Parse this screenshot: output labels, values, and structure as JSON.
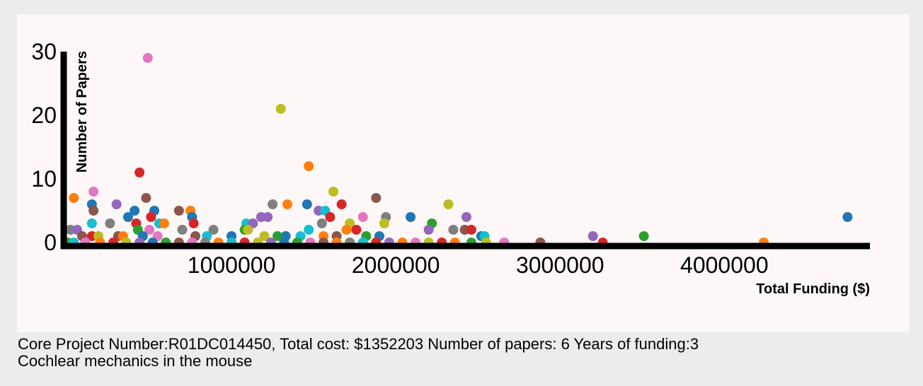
{
  "chart_data": {
    "type": "scatter",
    "xlabel": "Total Funding ($)",
    "ylabel": "Number of Papers",
    "xlim": [
      0,
      4800000
    ],
    "ylim": [
      0,
      30
    ],
    "x_ticks": [
      "1000000",
      "2000000",
      "3000000",
      "4000000"
    ],
    "y_ticks": [
      "0",
      "10",
      "20",
      "30"
    ],
    "palette": [
      "#1f77b4",
      "#ff7f0e",
      "#2ca02c",
      "#d62728",
      "#9467bd",
      "#8c564b",
      "#e377c2",
      "#7f7f7f",
      "#bcbd22",
      "#17becf"
    ],
    "points": [
      {
        "x": 490000,
        "y": 29,
        "c": 6
      },
      {
        "x": 1300000,
        "y": 21,
        "c": 8
      },
      {
        "x": 1470000,
        "y": 12,
        "c": 1
      },
      {
        "x": 440000,
        "y": 11,
        "c": 3
      },
      {
        "x": 160000,
        "y": 8,
        "c": 6
      },
      {
        "x": 1620000,
        "y": 8,
        "c": 8
      },
      {
        "x": 40000,
        "y": 7,
        "c": 1
      },
      {
        "x": 480000,
        "y": 7,
        "c": 5
      },
      {
        "x": 1880000,
        "y": 7,
        "c": 5
      },
      {
        "x": 150000,
        "y": 6,
        "c": 0
      },
      {
        "x": 300000,
        "y": 6,
        "c": 4
      },
      {
        "x": 1250000,
        "y": 6,
        "c": 7
      },
      {
        "x": 1340000,
        "y": 6,
        "c": 1
      },
      {
        "x": 1460000,
        "y": 6,
        "c": 0
      },
      {
        "x": 1670000,
        "y": 6,
        "c": 3
      },
      {
        "x": 2320000,
        "y": 6,
        "c": 8
      },
      {
        "x": 160000,
        "y": 5,
        "c": 5
      },
      {
        "x": 410000,
        "y": 5,
        "c": 0
      },
      {
        "x": 530000,
        "y": 5,
        "c": 0
      },
      {
        "x": 680000,
        "y": 5,
        "c": 5
      },
      {
        "x": 750000,
        "y": 5,
        "c": 1
      },
      {
        "x": 1530000,
        "y": 5,
        "c": 4
      },
      {
        "x": 1570000,
        "y": 5,
        "c": 9
      },
      {
        "x": 370000,
        "y": 4,
        "c": 0
      },
      {
        "x": 510000,
        "y": 4,
        "c": 3
      },
      {
        "x": 760000,
        "y": 4,
        "c": 0
      },
      {
        "x": 1180000,
        "y": 4,
        "c": 4
      },
      {
        "x": 1220000,
        "y": 4,
        "c": 4
      },
      {
        "x": 1600000,
        "y": 4,
        "c": 3
      },
      {
        "x": 1800000,
        "y": 4,
        "c": 6
      },
      {
        "x": 1940000,
        "y": 4,
        "c": 7
      },
      {
        "x": 2090000,
        "y": 4,
        "c": 0
      },
      {
        "x": 2430000,
        "y": 4,
        "c": 4
      },
      {
        "x": 4750000,
        "y": 4,
        "c": 0
      },
      {
        "x": 150000,
        "y": 3,
        "c": 9
      },
      {
        "x": 260000,
        "y": 3,
        "c": 7
      },
      {
        "x": 420000,
        "y": 3,
        "c": 3
      },
      {
        "x": 560000,
        "y": 3,
        "c": 9
      },
      {
        "x": 590000,
        "y": 3,
        "c": 1
      },
      {
        "x": 770000,
        "y": 3,
        "c": 3
      },
      {
        "x": 1090000,
        "y": 3,
        "c": 9
      },
      {
        "x": 1130000,
        "y": 3,
        "c": 4
      },
      {
        "x": 1550000,
        "y": 3,
        "c": 7
      },
      {
        "x": 1720000,
        "y": 3,
        "c": 8
      },
      {
        "x": 1930000,
        "y": 3,
        "c": 8
      },
      {
        "x": 2220000,
        "y": 3,
        "c": 2
      },
      {
        "x": 20000,
        "y": 2,
        "c": 7
      },
      {
        "x": 60000,
        "y": 2,
        "c": 4
      },
      {
        "x": 430000,
        "y": 2,
        "c": 2
      },
      {
        "x": 500000,
        "y": 2,
        "c": 6
      },
      {
        "x": 700000,
        "y": 2,
        "c": 7
      },
      {
        "x": 890000,
        "y": 2,
        "c": 7
      },
      {
        "x": 1080000,
        "y": 2,
        "c": 2
      },
      {
        "x": 1100000,
        "y": 2,
        "c": 8
      },
      {
        "x": 1470000,
        "y": 2,
        "c": 9
      },
      {
        "x": 1700000,
        "y": 2,
        "c": 1
      },
      {
        "x": 1760000,
        "y": 2,
        "c": 3
      },
      {
        "x": 2200000,
        "y": 2,
        "c": 4
      },
      {
        "x": 2350000,
        "y": 2,
        "c": 7
      },
      {
        "x": 2420000,
        "y": 2,
        "c": 5
      },
      {
        "x": 2460000,
        "y": 2,
        "c": 3
      },
      {
        "x": 90000,
        "y": 1,
        "c": 5
      },
      {
        "x": 150000,
        "y": 1,
        "c": 3
      },
      {
        "x": 190000,
        "y": 1,
        "c": 8
      },
      {
        "x": 310000,
        "y": 1,
        "c": 5
      },
      {
        "x": 340000,
        "y": 1,
        "c": 1
      },
      {
        "x": 460000,
        "y": 1,
        "c": 0
      },
      {
        "x": 550000,
        "y": 1,
        "c": 6
      },
      {
        "x": 780000,
        "y": 1,
        "c": 5
      },
      {
        "x": 850000,
        "y": 1,
        "c": 9
      },
      {
        "x": 1000000,
        "y": 1,
        "c": 0
      },
      {
        "x": 1200000,
        "y": 1,
        "c": 8
      },
      {
        "x": 1280000,
        "y": 1,
        "c": 2
      },
      {
        "x": 1330000,
        "y": 1,
        "c": 0
      },
      {
        "x": 1420000,
        "y": 1,
        "c": 9
      },
      {
        "x": 1560000,
        "y": 1,
        "c": 1
      },
      {
        "x": 1640000,
        "y": 1,
        "c": 5
      },
      {
        "x": 1820000,
        "y": 1,
        "c": 2
      },
      {
        "x": 1900000,
        "y": 1,
        "c": 0
      },
      {
        "x": 2520000,
        "y": 1,
        "c": 0
      },
      {
        "x": 2540000,
        "y": 1,
        "c": 9
      },
      {
        "x": 3200000,
        "y": 1,
        "c": 4
      },
      {
        "x": 3510000,
        "y": 1,
        "c": 2
      },
      {
        "x": 0,
        "y": 0,
        "c": 2
      },
      {
        "x": 40000,
        "y": 0,
        "c": 9
      },
      {
        "x": 110000,
        "y": 0,
        "c": 6
      },
      {
        "x": 200000,
        "y": 0,
        "c": 1
      },
      {
        "x": 280000,
        "y": 0,
        "c": 3
      },
      {
        "x": 360000,
        "y": 0,
        "c": 8
      },
      {
        "x": 440000,
        "y": 0,
        "c": 4
      },
      {
        "x": 520000,
        "y": 0,
        "c": 0
      },
      {
        "x": 600000,
        "y": 0,
        "c": 2
      },
      {
        "x": 680000,
        "y": 0,
        "c": 5
      },
      {
        "x": 760000,
        "y": 0,
        "c": 6
      },
      {
        "x": 840000,
        "y": 0,
        "c": 7
      },
      {
        "x": 920000,
        "y": 0,
        "c": 1
      },
      {
        "x": 1000000,
        "y": 0,
        "c": 9
      },
      {
        "x": 1080000,
        "y": 0,
        "c": 3
      },
      {
        "x": 1160000,
        "y": 0,
        "c": 8
      },
      {
        "x": 1240000,
        "y": 0,
        "c": 4
      },
      {
        "x": 1320000,
        "y": 0,
        "c": 0
      },
      {
        "x": 1400000,
        "y": 0,
        "c": 2
      },
      {
        "x": 1480000,
        "y": 0,
        "c": 6
      },
      {
        "x": 1560000,
        "y": 0,
        "c": 5
      },
      {
        "x": 1640000,
        "y": 0,
        "c": 1
      },
      {
        "x": 1720000,
        "y": 0,
        "c": 7
      },
      {
        "x": 1800000,
        "y": 0,
        "c": 9
      },
      {
        "x": 1880000,
        "y": 0,
        "c": 3
      },
      {
        "x": 1960000,
        "y": 0,
        "c": 4
      },
      {
        "x": 2040000,
        "y": 0,
        "c": 1
      },
      {
        "x": 2120000,
        "y": 0,
        "c": 6
      },
      {
        "x": 2200000,
        "y": 0,
        "c": 8
      },
      {
        "x": 2280000,
        "y": 0,
        "c": 3
      },
      {
        "x": 2360000,
        "y": 0,
        "c": 1
      },
      {
        "x": 2460000,
        "y": 0,
        "c": 2
      },
      {
        "x": 2550000,
        "y": 0,
        "c": 8
      },
      {
        "x": 2660000,
        "y": 0,
        "c": 6
      },
      {
        "x": 2880000,
        "y": 0,
        "c": 5
      },
      {
        "x": 3260000,
        "y": 0,
        "c": 3
      },
      {
        "x": 4240000,
        "y": 0,
        "c": 1
      }
    ]
  },
  "info": {
    "line1": "Core Project Number:R01DC014450, Total cost: $1352203 Number of papers: 6 Years of funding:3",
    "line2": "Cochlear mechanics in the mouse"
  }
}
